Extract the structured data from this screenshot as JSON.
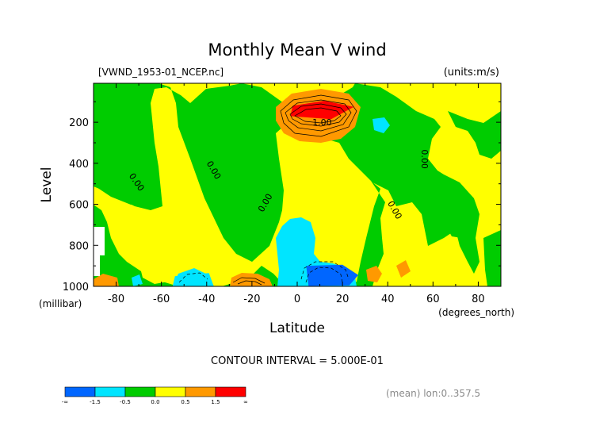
{
  "chart_data": {
    "type": "heatmap",
    "title": "Monthly Mean V wind",
    "dataset_label": "[VWND_1953-01_NCEP.nc]",
    "units_label": "(units:m/s)",
    "xlabel": "Latitude",
    "x_unit_label": "(degrees_north)",
    "ylabel": "Level",
    "y_unit_label": "(millibar)",
    "xlim": [
      -90,
      90
    ],
    "ylim": [
      1000,
      10
    ],
    "x_ticks": [
      -80,
      -60,
      -40,
      -20,
      0,
      20,
      40,
      60,
      80
    ],
    "y_ticks": [
      200,
      400,
      600,
      800,
      1000
    ],
    "contour_interval_text": "CONTOUR INTERVAL = 5.000E-01",
    "footer_note": "(mean) lon:0..357.5",
    "colorbar": {
      "labels": [
        "-∞",
        "-1.5",
        "-0.5",
        "0.0",
        "0.5",
        "1.5",
        "∞"
      ],
      "colors": [
        "#0066ff",
        "#00e5ff",
        "#00cc00",
        "#ffff00",
        "#ff9900",
        "#ff0000"
      ]
    },
    "regions": [
      {
        "name": "red",
        "value": 2.0,
        "color": "#ff0000",
        "points": [
          [
            -2,
            120
          ],
          [
            12,
            95
          ],
          [
            25,
            125
          ],
          [
            15,
            185
          ],
          [
            -3,
            170
          ]
        ]
      },
      {
        "name": "blue",
        "value": -2.0,
        "color": "#0066ff",
        "points": [
          [
            4,
            900
          ],
          [
            20,
            895
          ],
          [
            27,
            945
          ],
          [
            23,
            995
          ],
          [
            5,
            998
          ]
        ]
      },
      {
        "name": "cyan-left",
        "value": -1.0,
        "color": "#00e5ff",
        "points": [
          [
            -54,
            950
          ],
          [
            -39,
            935
          ],
          [
            -37,
            995
          ],
          [
            -55,
            998
          ]
        ]
      }
    ],
    "contour_labels": [
      {
        "text": "0.00",
        "lat": -72,
        "lev": 500,
        "angle": 55
      },
      {
        "text": "0.00",
        "lat": -38,
        "lev": 440,
        "angle": 60
      },
      {
        "text": "0.00",
        "lat": -13,
        "lev": 600,
        "angle": -60
      },
      {
        "text": "0.00",
        "lat": 42,
        "lev": 635,
        "angle": 60
      },
      {
        "text": "0.00",
        "lat": 55,
        "lev": 380,
        "angle": 90
      },
      {
        "text": "1.00",
        "lat": 11,
        "lev": 215,
        "angle": 0
      }
    ]
  }
}
